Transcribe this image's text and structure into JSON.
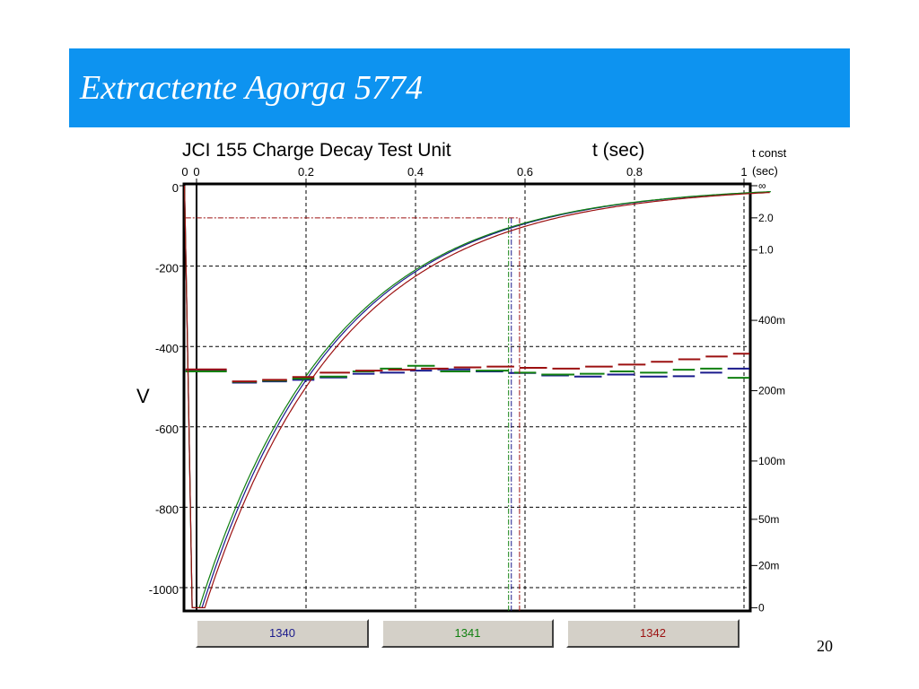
{
  "slide": {
    "title": "Extractente Agorga 5774",
    "page_number": "20"
  },
  "chart_data": {
    "type": "line",
    "title": "JCI 155 Charge Decay Test Unit",
    "xlabel": "t (sec)",
    "ylabel": "V",
    "right_axis_label": [
      "t const",
      "(sec)"
    ],
    "xlim": [
      0,
      1.05
    ],
    "ylim": [
      -1050,
      0
    ],
    "x_ticks": [
      0,
      0.2,
      0.4,
      0.6,
      0.8,
      1
    ],
    "x_tick_labels": [
      "0",
      "0.2",
      "0.4",
      "0.6",
      "0.8",
      "1"
    ],
    "x_origin_label": "0",
    "y_ticks": [
      0,
      -200,
      -400,
      -600,
      -800,
      -1000
    ],
    "y_tick_labels": [
      "0",
      "-200",
      "-400",
      "-600",
      "-800",
      "-1000"
    ],
    "tconst_ticks": [
      {
        "label": "∞",
        "y": 0
      },
      {
        "label": "2.0",
        "y": -80
      },
      {
        "label": "1.0",
        "y": -160
      },
      {
        "label": "400m",
        "y": -335
      },
      {
        "label": "200m",
        "y": -510
      },
      {
        "label": "100m",
        "y": -685
      },
      {
        "label": "50m",
        "y": -830
      },
      {
        "label": "20m",
        "y": -945
      },
      {
        "label": "0",
        "y": -1050
      }
    ],
    "grid": true,
    "series": [
      {
        "name": "1340",
        "color": "#1a1a8c",
        "decay": {
          "v0": -1050,
          "t0": 0.01,
          "tau": 0.245
        },
        "tau_marker_x": 0.575,
        "tconst_steps": [
          [
            -0.02,
            -460
          ],
          [
            0.065,
            -490
          ],
          [
            0.12,
            -487
          ],
          [
            0.175,
            -483
          ],
          [
            0.225,
            -477
          ],
          [
            0.285,
            -468
          ],
          [
            0.335,
            -465
          ],
          [
            0.39,
            -460
          ],
          [
            0.44,
            -457
          ],
          [
            0.51,
            -462
          ],
          [
            0.57,
            -466
          ],
          [
            0.63,
            -472
          ],
          [
            0.69,
            -475
          ],
          [
            0.75,
            -470
          ],
          [
            0.81,
            -475
          ],
          [
            0.87,
            -474
          ],
          [
            0.92,
            -465
          ],
          [
            0.97,
            -455
          ],
          [
            1.02,
            -460
          ]
        ]
      },
      {
        "name": "1341",
        "color": "#108010",
        "decay": {
          "v0": -1050,
          "t0": 0.005,
          "tau": 0.245
        },
        "tau_marker_x": 0.57,
        "tconst_steps": [
          [
            -0.02,
            -462
          ],
          [
            0.065,
            -488
          ],
          [
            0.12,
            -485
          ],
          [
            0.175,
            -480
          ],
          [
            0.225,
            -475
          ],
          [
            0.285,
            -462
          ],
          [
            0.335,
            -455
          ],
          [
            0.385,
            -448
          ],
          [
            0.445,
            -462
          ],
          [
            0.51,
            -460
          ],
          [
            0.58,
            -465
          ],
          [
            0.63,
            -470
          ],
          [
            0.7,
            -468
          ],
          [
            0.755,
            -462
          ],
          [
            0.81,
            -465
          ],
          [
            0.87,
            -458
          ],
          [
            0.92,
            -455
          ],
          [
            0.97,
            -478
          ],
          [
            1.02,
            -522
          ]
        ]
      },
      {
        "name": "1342",
        "color": "#9c1010",
        "decay": {
          "v0": -1050,
          "t0": 0.015,
          "tau": 0.25
        },
        "tau_marker_x": 0.59,
        "tau_marker_y": -80,
        "tconst_steps": [
          [
            -0.02,
            -457
          ],
          [
            0.065,
            -487
          ],
          [
            0.12,
            -483
          ],
          [
            0.175,
            -476
          ],
          [
            0.225,
            -465
          ],
          [
            0.29,
            -460
          ],
          [
            0.35,
            -458
          ],
          [
            0.41,
            -455
          ],
          [
            0.47,
            -452
          ],
          [
            0.53,
            -450
          ],
          [
            0.59,
            -453
          ],
          [
            0.65,
            -455
          ],
          [
            0.71,
            -450
          ],
          [
            0.77,
            -445
          ],
          [
            0.83,
            -438
          ],
          [
            0.88,
            -432
          ],
          [
            0.93,
            -425
          ],
          [
            0.98,
            -418
          ],
          [
            1.02,
            -410
          ]
        ]
      }
    ]
  },
  "buttons": [
    {
      "label": "1340",
      "color": "#1a1a8c"
    },
    {
      "label": "1341",
      "color": "#108010"
    },
    {
      "label": "1342",
      "color": "#9c1010"
    }
  ]
}
